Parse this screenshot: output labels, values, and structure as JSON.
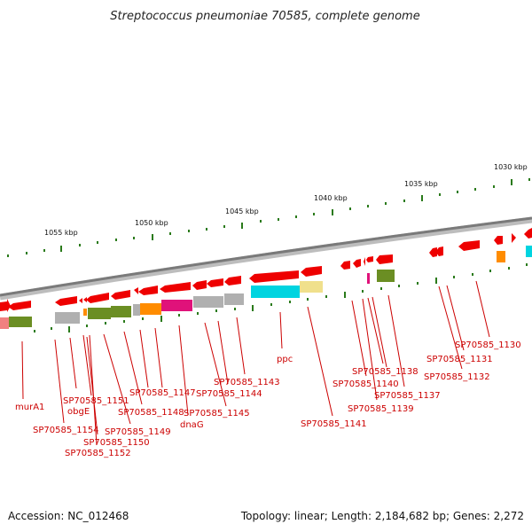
{
  "title": "Streptococcus pneumoniae 70585, complete genome",
  "footer": {
    "accession": "Accession: NC_012468",
    "summary": "Topology: linear; Length: 2,184,682 bp; Genes: 2,272"
  },
  "colors": {
    "backbone": "#8a8a8a",
    "tick": "#2a7a1a",
    "label": "#cc0000",
    "gene_arrow": "#ee0000"
  },
  "scale_ticks": [
    {
      "label": "1055 kbp"
    },
    {
      "label": "1050 kbp"
    },
    {
      "label": "1045 kbp"
    },
    {
      "label": "1040 kbp"
    },
    {
      "label": "1035 kbp"
    },
    {
      "label": "1030 kbp"
    }
  ],
  "gene_labels": [
    "murA1",
    "SP70585_1154",
    "obgE",
    "SP70585_1151",
    "SP70585_1150",
    "SP70585_1152",
    "SP70585_1149",
    "SP70585_1148",
    "SP70585_1147",
    "dnaG",
    "SP70585_1145",
    "SP70585_1144",
    "SP70585_1143",
    "ppc",
    "SP70585_1141",
    "SP70585_1140",
    "SP70585_1139",
    "SP70585_1138",
    "SP70585_1137",
    "SP70585_1132",
    "SP70585_1131",
    "SP70585_1130"
  ]
}
